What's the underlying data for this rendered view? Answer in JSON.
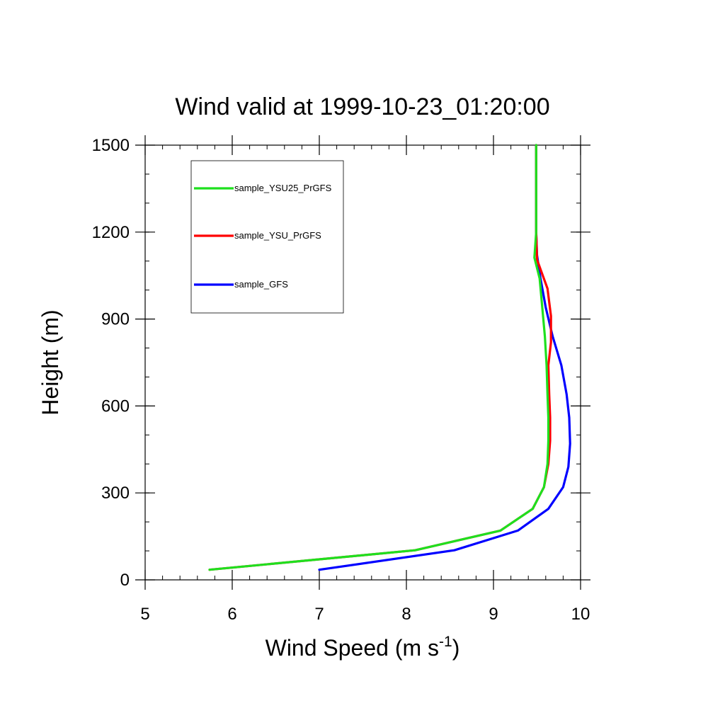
{
  "chart_data": {
    "type": "line",
    "title": "Wind valid at 1999-10-23_01:20:00",
    "xlabel": "Wind Speed (m s",
    "xlabel_sup": "-1",
    "xlabel_tail": ")",
    "ylabel": "Height (m)",
    "xlim": [
      5,
      10
    ],
    "ylim": [
      0,
      1500
    ],
    "x_ticks": [
      "5",
      "6",
      "7",
      "8",
      "9",
      "10"
    ],
    "y_ticks": [
      "0",
      "300",
      "600",
      "900",
      "1200",
      "1500"
    ],
    "grid": false,
    "legend_position": "top-left",
    "series": [
      {
        "name": "sample_YSU25_PrGFS",
        "color": "#1ee01e",
        "points": [
          [
            5.74,
            35
          ],
          [
            8.1,
            102
          ],
          [
            9.08,
            170
          ],
          [
            9.45,
            245
          ],
          [
            9.58,
            320
          ],
          [
            9.62,
            400
          ],
          [
            9.63,
            480
          ],
          [
            9.63,
            560
          ],
          [
            9.62,
            640
          ],
          [
            9.61,
            740
          ],
          [
            9.59,
            840
          ],
          [
            9.56,
            940
          ],
          [
            9.53,
            1040
          ],
          [
            9.47,
            1112
          ],
          [
            9.49,
            1200
          ],
          [
            9.49,
            1300
          ],
          [
            9.49,
            1400
          ],
          [
            9.49,
            1500
          ]
        ]
      },
      {
        "name": "sample_YSU_PrGFS",
        "color": "#ff0000",
        "points": [
          [
            5.74,
            35
          ],
          [
            8.1,
            102
          ],
          [
            9.08,
            170
          ],
          [
            9.45,
            245
          ],
          [
            9.58,
            320
          ],
          [
            9.63,
            400
          ],
          [
            9.65,
            480
          ],
          [
            9.65,
            560
          ],
          [
            9.64,
            640
          ],
          [
            9.63,
            740
          ],
          [
            9.66,
            820
          ],
          [
            9.66,
            910
          ],
          [
            9.62,
            1005
          ],
          [
            9.5,
            1105
          ],
          [
            9.49,
            1200
          ],
          [
            9.49,
            1300
          ],
          [
            9.49,
            1400
          ],
          [
            9.49,
            1500
          ]
        ]
      },
      {
        "name": "sample_GFS",
        "color": "#0000ff",
        "points": [
          [
            7.0,
            35
          ],
          [
            8.55,
            102
          ],
          [
            9.28,
            170
          ],
          [
            9.63,
            245
          ],
          [
            9.8,
            320
          ],
          [
            9.86,
            390
          ],
          [
            9.88,
            470
          ],
          [
            9.87,
            560
          ],
          [
            9.84,
            640
          ],
          [
            9.78,
            740
          ],
          [
            9.68,
            840
          ],
          [
            9.6,
            940
          ],
          [
            9.54,
            1040
          ],
          [
            9.5,
            1120
          ],
          [
            9.49,
            1200
          ],
          [
            9.49,
            1300
          ],
          [
            9.49,
            1400
          ],
          [
            9.49,
            1500
          ]
        ]
      }
    ]
  }
}
